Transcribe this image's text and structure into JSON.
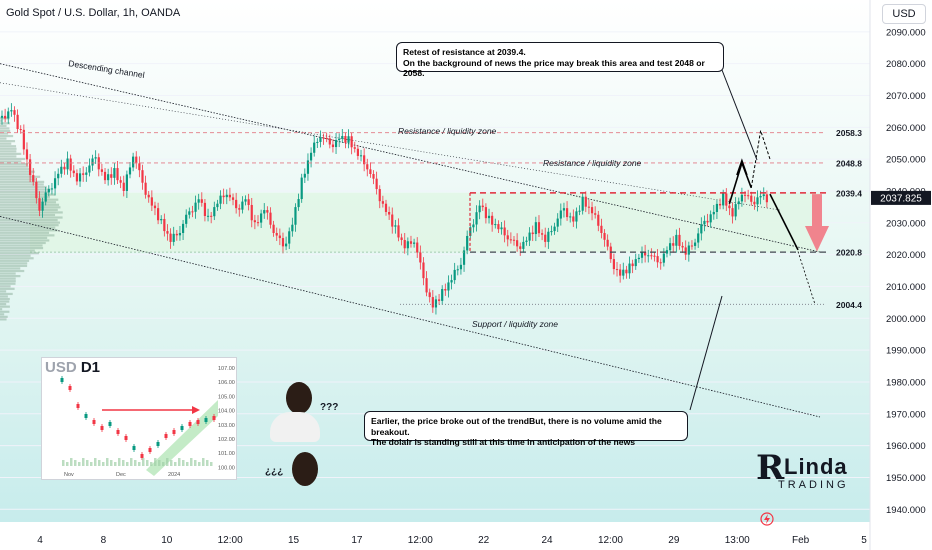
{
  "header": {
    "title": "Gold Spot / U.S. Dollar, 1h, OANDA",
    "currency_button": "USD"
  },
  "annotations": {
    "callout_top": [
      "Retest of resistance at 2039.4.",
      "On the background of news the price may break this area and test 2048 or 2058."
    ],
    "callout_bottom": [
      "Earlier, the price broke out of the trendBut, there is no volume amid the breakout.",
      "The dolalr is standing still at this time in anticipation of the news"
    ],
    "descending_channel": "Descending channel",
    "resistance_top": "Resistance / liquidity zone",
    "resistance_mid": "Resistance / liquidity zone",
    "support": "Support / liquidity zone",
    "question_marks_top": "???",
    "question_marks_bottom": "¿¿¿"
  },
  "logo": {
    "letters_big": "R",
    "line1": "Linda",
    "line2": "TRADING"
  },
  "inset": {
    "symbol": "USD",
    "interval": "D1",
    "x_ticks": [
      "Nov",
      "Dec",
      "2024"
    ],
    "y_ticks": [
      "107.00",
      "106.00",
      "105.00",
      "104.00",
      "103.00",
      "102.00",
      "101.00",
      "100.00"
    ]
  },
  "colors": {
    "bull": "#089981",
    "bear": "#f23645",
    "green_zone": "#dff5e3",
    "teal_bg_top": "#cdeef0",
    "price_tag": "#131722",
    "level_red": "#e02b3b"
  },
  "chart_data": {
    "type": "candlestick",
    "title": "Gold Spot / U.S. Dollar, 1h, OANDA",
    "y_axis": {
      "range": [
        1936,
        2100
      ],
      "ticks": [
        2090.0,
        2080.0,
        2070.0,
        2060.0,
        2050.0,
        2040.0,
        2030.0,
        2020.0,
        2010.0,
        2000.0,
        1990.0,
        1980.0,
        1970.0,
        1960.0,
        1950.0,
        1940.0
      ],
      "tick_labels": [
        "2090.000",
        "2080.000",
        "2070.000",
        "2060.000",
        "2050.000",
        "2040.000",
        "2030.000",
        "2020.000",
        "2010.000",
        "2000.000",
        "1990.000",
        "1980.000",
        "1970.000",
        "1960.000",
        "1950.000",
        "1940.000"
      ],
      "current_price": 2037.825,
      "current_price_label": "2037.825"
    },
    "x_axis": {
      "tick_labels": [
        "4",
        "8",
        "10",
        "12:00",
        "15",
        "17",
        "12:00",
        "22",
        "24",
        "12:00",
        "29",
        "13:00",
        "Feb",
        "5"
      ]
    },
    "levels": [
      {
        "value": 2058.3,
        "label": "2058.3",
        "style": "dashed-red"
      },
      {
        "value": 2048.8,
        "label": "2048.8",
        "style": "dashed-red"
      },
      {
        "value": 2039.4,
        "label": "2039.4",
        "style": "dashed-red"
      },
      {
        "value": 2020.8,
        "label": "2020.8",
        "style": "dashed-gray"
      },
      {
        "value": 2004.4,
        "label": "2004.4",
        "style": "dotted-gray"
      }
    ],
    "price_path": [
      [
        0,
        2063
      ],
      [
        3,
        2066
      ],
      [
        6,
        2058
      ],
      [
        9,
        2045
      ],
      [
        12,
        2035
      ],
      [
        15,
        2040
      ],
      [
        18,
        2046
      ],
      [
        21,
        2049
      ],
      [
        24,
        2043
      ],
      [
        27,
        2047
      ],
      [
        30,
        2050
      ],
      [
        33,
        2044
      ],
      [
        36,
        2046
      ],
      [
        39,
        2040
      ],
      [
        42,
        2052
      ],
      [
        45,
        2042
      ],
      [
        48,
        2036
      ],
      [
        51,
        2030
      ],
      [
        54,
        2024
      ],
      [
        57,
        2028
      ],
      [
        60,
        2033
      ],
      [
        63,
        2038
      ],
      [
        66,
        2031
      ],
      [
        69,
        2036
      ],
      [
        72,
        2040
      ],
      [
        75,
        2034
      ],
      [
        78,
        2038
      ],
      [
        81,
        2029
      ],
      [
        84,
        2034
      ],
      [
        87,
        2028
      ],
      [
        90,
        2022
      ],
      [
        93,
        2030
      ],
      [
        96,
        2043
      ],
      [
        99,
        2052
      ],
      [
        102,
        2058
      ],
      [
        105,
        2054
      ],
      [
        108,
        2057
      ],
      [
        111,
        2056
      ],
      [
        114,
        2051
      ],
      [
        117,
        2048
      ],
      [
        120,
        2040
      ],
      [
        123,
        2034
      ],
      [
        126,
        2028
      ],
      [
        129,
        2022
      ],
      [
        132,
        2025
      ],
      [
        135,
        2012
      ],
      [
        138,
        2004
      ],
      [
        141,
        2008
      ],
      [
        144,
        2012
      ],
      [
        147,
        2018
      ],
      [
        150,
        2028
      ],
      [
        153,
        2036
      ],
      [
        156,
        2031
      ],
      [
        159,
        2028
      ],
      [
        162,
        2026
      ],
      [
        165,
        2022
      ],
      [
        168,
        2025
      ],
      [
        171,
        2029
      ],
      [
        174,
        2024
      ],
      [
        177,
        2030
      ],
      [
        180,
        2034
      ],
      [
        183,
        2031
      ],
      [
        186,
        2037
      ],
      [
        189,
        2033
      ],
      [
        192,
        2028
      ],
      [
        195,
        2018
      ],
      [
        198,
        2014
      ],
      [
        201,
        2016
      ],
      [
        204,
        2019
      ],
      [
        207,
        2021
      ],
      [
        210,
        2017
      ],
      [
        213,
        2022
      ],
      [
        216,
        2025
      ],
      [
        219,
        2020
      ],
      [
        222,
        2025
      ],
      [
        225,
        2030
      ],
      [
        228,
        2034
      ],
      [
        231,
        2038
      ],
      [
        234,
        2032
      ],
      [
        237,
        2040
      ],
      [
        240,
        2036
      ],
      [
        243,
        2039
      ],
      [
        246,
        2037
      ]
    ]
  }
}
